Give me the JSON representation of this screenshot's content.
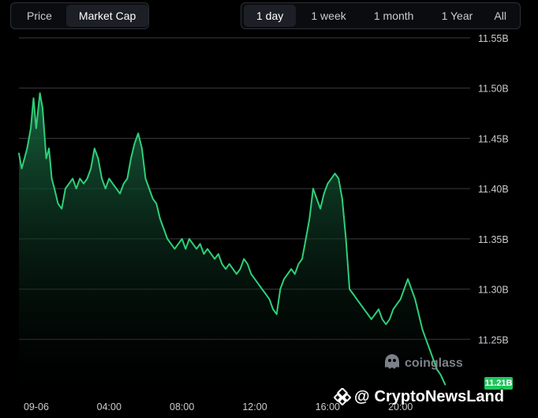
{
  "metric_toggle": {
    "options": [
      "Price",
      "Market Cap"
    ],
    "active": "Market Cap"
  },
  "range_toggle": {
    "options": [
      "1 day",
      "1 week",
      "1 month",
      "1 Year",
      "All"
    ],
    "active": "1 day"
  },
  "current_value_label": "11.21B",
  "watermark": "coinglass",
  "source_watermark": {
    "at_sign": "@",
    "name": "CryptoNewsLand"
  },
  "colors": {
    "line": "#2ecf78",
    "fill_top": "#1a6a43",
    "fill_bottom": "#000000",
    "badge": "#21c55d",
    "grid": "#3a3d42"
  },
  "chart_data": {
    "type": "area",
    "title": "",
    "xlabel": "",
    "ylabel": "",
    "y_unit": "B",
    "ylim": [
      11.2,
      11.55
    ],
    "y_ticks": [
      11.25,
      11.3,
      11.35,
      11.4,
      11.45,
      11.5,
      11.55
    ],
    "y_tick_labels": [
      "11.25B",
      "11.30B",
      "11.35B",
      "11.40B",
      "11.45B",
      "11.50B",
      "11.55B"
    ],
    "x_tick_labels": [
      "09-06",
      "04:00",
      "08:00",
      "12:00",
      "16:00",
      "20:00"
    ],
    "x_tick_hours": [
      0,
      4,
      8,
      12,
      16,
      20
    ],
    "xlim_hours": [
      -0.95,
      23.65
    ],
    "grid": "horizontal",
    "series": [
      {
        "points": [
          [
            -0.95,
            11.435
          ],
          [
            -0.8,
            11.42
          ],
          [
            -0.5,
            11.44
          ],
          [
            -0.3,
            11.46
          ],
          [
            -0.15,
            11.49
          ],
          [
            0.0,
            11.46
          ],
          [
            0.2,
            11.495
          ],
          [
            0.35,
            11.48
          ],
          [
            0.55,
            11.43
          ],
          [
            0.7,
            11.44
          ],
          [
            0.85,
            11.41
          ],
          [
            1.0,
            11.4
          ],
          [
            1.2,
            11.385
          ],
          [
            1.4,
            11.38
          ],
          [
            1.6,
            11.4
          ],
          [
            1.8,
            11.405
          ],
          [
            2.0,
            11.41
          ],
          [
            2.2,
            11.4
          ],
          [
            2.4,
            11.41
          ],
          [
            2.6,
            11.405
          ],
          [
            2.8,
            11.41
          ],
          [
            3.0,
            11.42
          ],
          [
            3.2,
            11.44
          ],
          [
            3.4,
            11.43
          ],
          [
            3.6,
            11.41
          ],
          [
            3.8,
            11.4
          ],
          [
            4.0,
            11.41
          ],
          [
            4.2,
            11.405
          ],
          [
            4.4,
            11.4
          ],
          [
            4.6,
            11.395
          ],
          [
            4.8,
            11.405
          ],
          [
            5.0,
            11.41
          ],
          [
            5.2,
            11.43
          ],
          [
            5.4,
            11.445
          ],
          [
            5.6,
            11.455
          ],
          [
            5.8,
            11.44
          ],
          [
            6.0,
            11.41
          ],
          [
            6.2,
            11.4
          ],
          [
            6.4,
            11.39
          ],
          [
            6.6,
            11.385
          ],
          [
            6.8,
            11.37
          ],
          [
            7.0,
            11.36
          ],
          [
            7.2,
            11.35
          ],
          [
            7.4,
            11.345
          ],
          [
            7.6,
            11.34
          ],
          [
            7.8,
            11.345
          ],
          [
            8.0,
            11.35
          ],
          [
            8.2,
            11.34
          ],
          [
            8.4,
            11.35
          ],
          [
            8.6,
            11.345
          ],
          [
            8.8,
            11.34
          ],
          [
            9.0,
            11.345
          ],
          [
            9.2,
            11.335
          ],
          [
            9.4,
            11.34
          ],
          [
            9.6,
            11.335
          ],
          [
            9.8,
            11.33
          ],
          [
            10.0,
            11.335
          ],
          [
            10.2,
            11.325
          ],
          [
            10.4,
            11.32
          ],
          [
            10.6,
            11.325
          ],
          [
            10.8,
            11.32
          ],
          [
            11.0,
            11.315
          ],
          [
            11.2,
            11.32
          ],
          [
            11.4,
            11.33
          ],
          [
            11.6,
            11.325
          ],
          [
            11.8,
            11.315
          ],
          [
            12.0,
            11.31
          ],
          [
            12.2,
            11.305
          ],
          [
            12.4,
            11.3
          ],
          [
            12.6,
            11.295
          ],
          [
            12.8,
            11.29
          ],
          [
            13.0,
            11.28
          ],
          [
            13.2,
            11.275
          ],
          [
            13.4,
            11.3
          ],
          [
            13.6,
            11.31
          ],
          [
            13.8,
            11.315
          ],
          [
            14.0,
            11.32
          ],
          [
            14.2,
            11.315
          ],
          [
            14.4,
            11.325
          ],
          [
            14.6,
            11.33
          ],
          [
            14.8,
            11.35
          ],
          [
            15.0,
            11.37
          ],
          [
            15.2,
            11.4
          ],
          [
            15.4,
            11.39
          ],
          [
            15.6,
            11.38
          ],
          [
            15.8,
            11.395
          ],
          [
            16.0,
            11.405
          ],
          [
            16.2,
            11.41
          ],
          [
            16.4,
            11.415
          ],
          [
            16.6,
            11.41
          ],
          [
            16.8,
            11.39
          ],
          [
            17.0,
            11.35
          ],
          [
            17.2,
            11.3
          ],
          [
            17.4,
            11.295
          ],
          [
            17.6,
            11.29
          ],
          [
            17.8,
            11.285
          ],
          [
            18.0,
            11.28
          ],
          [
            18.2,
            11.275
          ],
          [
            18.4,
            11.27
          ],
          [
            18.6,
            11.275
          ],
          [
            18.8,
            11.28
          ],
          [
            19.0,
            11.27
          ],
          [
            19.2,
            11.265
          ],
          [
            19.4,
            11.27
          ],
          [
            19.6,
            11.28
          ],
          [
            19.8,
            11.285
          ],
          [
            20.0,
            11.29
          ],
          [
            20.2,
            11.3
          ],
          [
            20.4,
            11.31
          ],
          [
            20.6,
            11.3
          ],
          [
            20.8,
            11.29
          ],
          [
            21.0,
            11.275
          ],
          [
            21.2,
            11.26
          ],
          [
            21.4,
            11.25
          ],
          [
            21.6,
            11.24
          ],
          [
            21.8,
            11.23
          ],
          [
            22.0,
            11.22
          ],
          [
            22.2,
            11.215
          ],
          [
            22.45,
            11.205
          ]
        ]
      }
    ]
  }
}
